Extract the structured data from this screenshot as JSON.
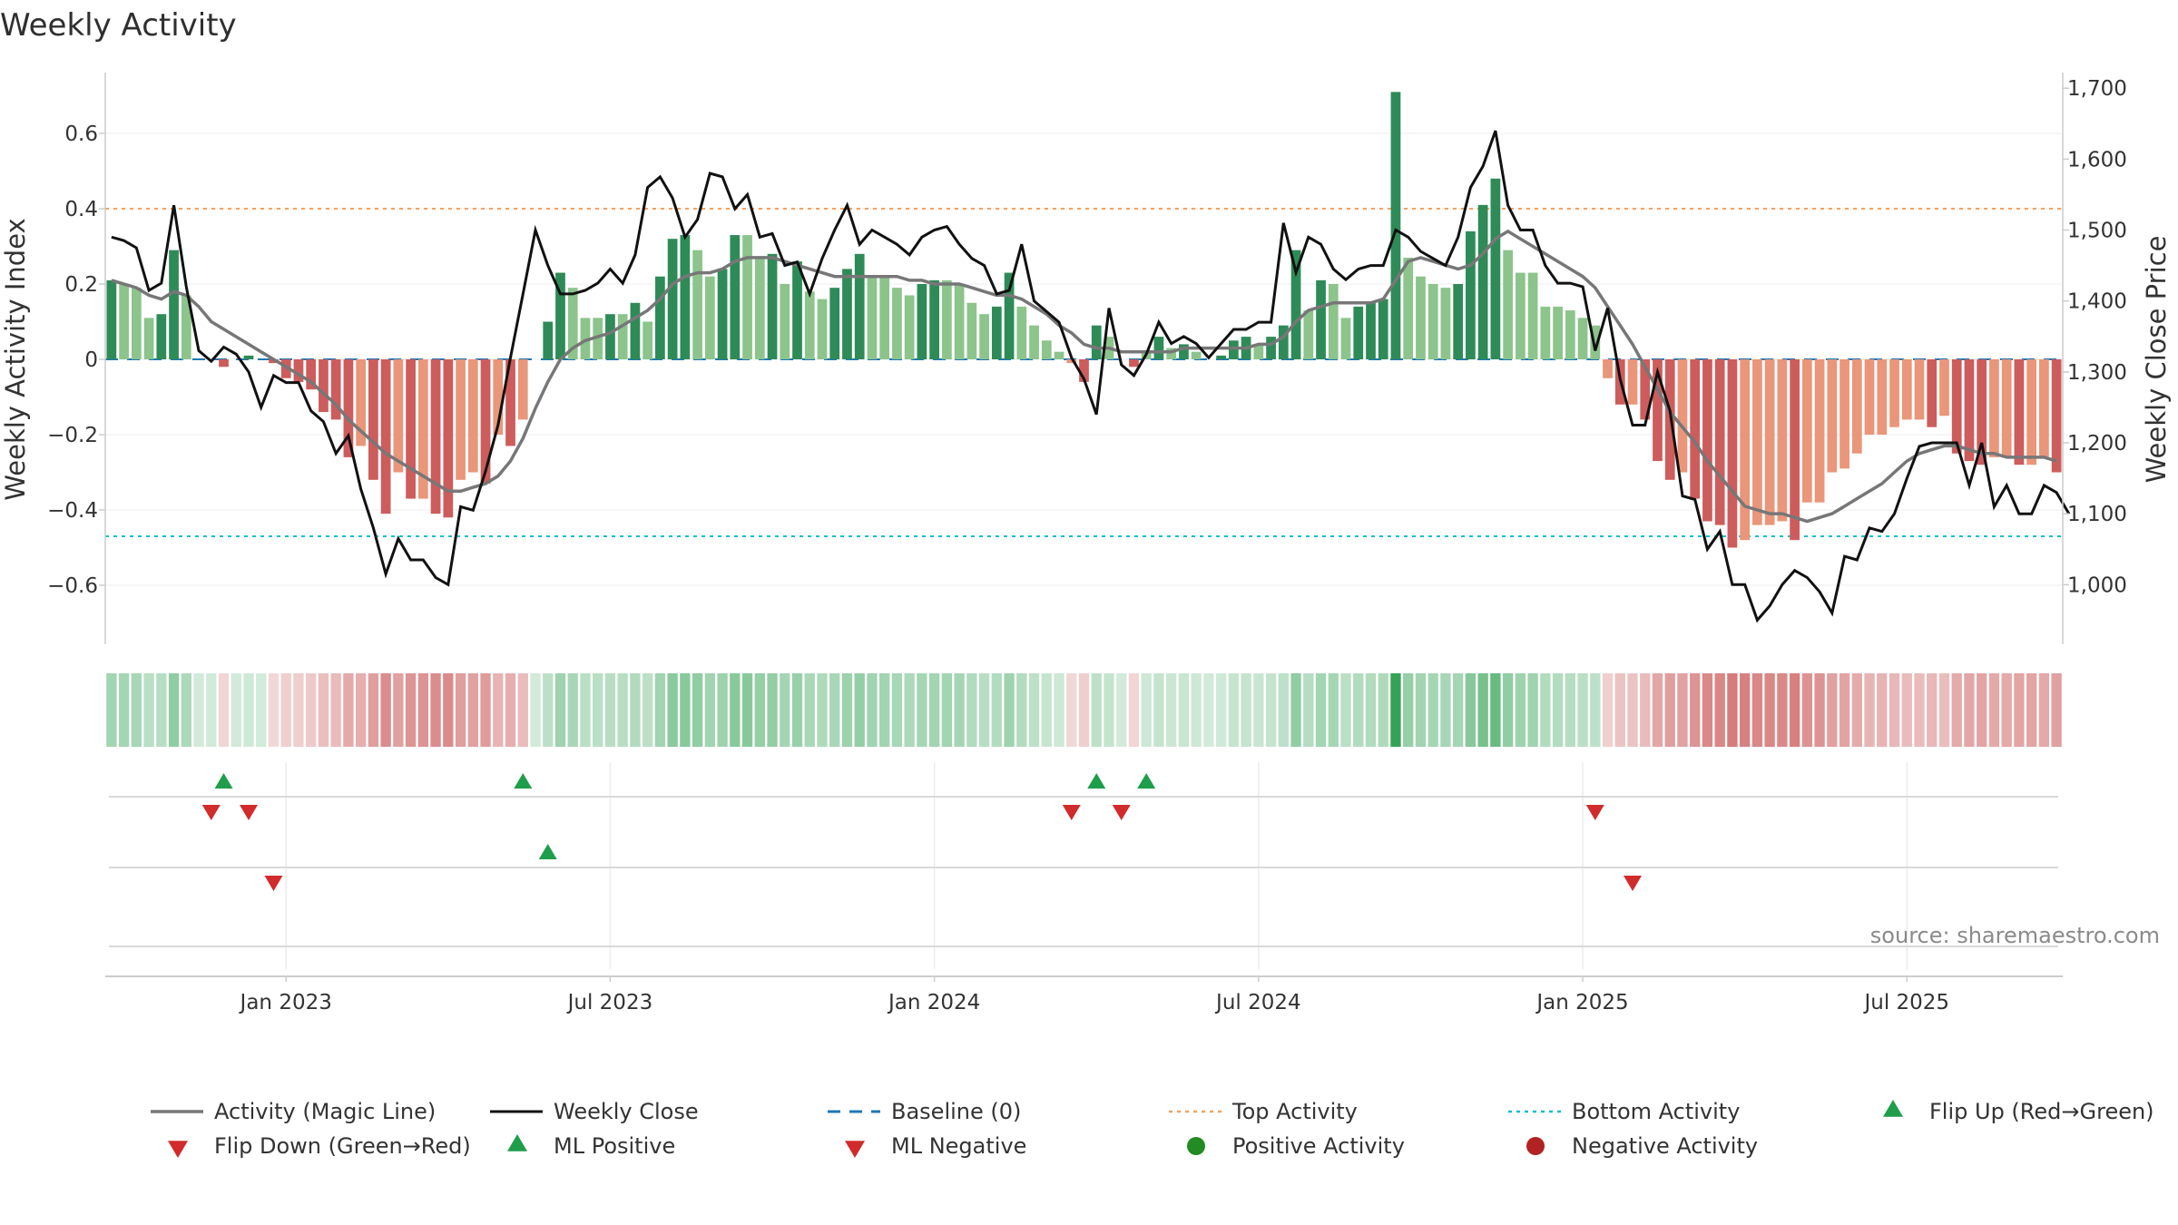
{
  "chart_data": {
    "type": "bar+line",
    "title": "Weekly Activity",
    "ylabel_left": "Weekly Activity Index",
    "ylabel_right": "Weekly Close Price",
    "source": "source: sharemaestro.com",
    "ylim_left": [
      -0.76,
      0.76
    ],
    "ylim_right": [
      916,
      1722
    ],
    "yticks_left": [
      {
        "value": 0.6,
        "label": "0.6"
      },
      {
        "value": 0.4,
        "label": "0.4"
      },
      {
        "value": 0.2,
        "label": "0.2"
      },
      {
        "value": 0,
        "label": "0"
      },
      {
        "value": -0.2,
        "label": "−0.2"
      },
      {
        "value": -0.4,
        "label": "−0.4"
      },
      {
        "value": -0.6,
        "label": "−0.6"
      }
    ],
    "yticks_right": [
      {
        "value": 1700,
        "label": "1,700"
      },
      {
        "value": 1600,
        "label": "1,600"
      },
      {
        "value": 1500,
        "label": "1,500"
      },
      {
        "value": 1400,
        "label": "1,400"
      },
      {
        "value": 1300,
        "label": "1,300"
      },
      {
        "value": 1200,
        "label": "1,200"
      },
      {
        "value": 1100,
        "label": "1,100"
      },
      {
        "value": 1000,
        "label": "1,000"
      }
    ],
    "xticks": [
      {
        "week": 14,
        "label": "Jan 2023"
      },
      {
        "week": 40,
        "label": "Jul 2023"
      },
      {
        "week": 66,
        "label": "Jan 2024"
      },
      {
        "week": 92,
        "label": "Jul 2024"
      },
      {
        "week": 118,
        "label": "Jan 2025"
      },
      {
        "week": 144,
        "label": "Jul 2025"
      }
    ],
    "reference_lines": {
      "top_activity": 0.4,
      "bottom_activity": -0.47,
      "baseline": 0
    },
    "weeks": 157,
    "activity": [
      0.21,
      0.2,
      0.19,
      0.11,
      0.12,
      0.29,
      0.17,
      0.0,
      0.0,
      -0.02,
      0.0,
      0.01,
      0.0,
      -0.01,
      -0.05,
      -0.06,
      -0.08,
      -0.14,
      -0.16,
      -0.26,
      -0.23,
      -0.32,
      -0.41,
      -0.3,
      -0.37,
      -0.37,
      -0.41,
      -0.42,
      -0.32,
      -0.3,
      -0.33,
      -0.2,
      -0.23,
      -0.16,
      0.0,
      0.1,
      0.23,
      0.19,
      0.11,
      0.11,
      0.12,
      0.12,
      0.15,
      0.1,
      0.22,
      0.32,
      0.33,
      0.29,
      0.22,
      0.24,
      0.33,
      0.33,
      0.27,
      0.28,
      0.2,
      0.26,
      0.18,
      0.16,
      0.19,
      0.24,
      0.28,
      0.22,
      0.22,
      0.19,
      0.17,
      0.2,
      0.21,
      0.21,
      0.2,
      0.15,
      0.12,
      0.14,
      0.23,
      0.14,
      0.09,
      0.05,
      0.02,
      -0.01,
      -0.06,
      0.09,
      0.06,
      0.0,
      -0.02,
      0.02,
      0.06,
      0.03,
      0.04,
      0.02,
      0.0,
      0.01,
      0.05,
      0.06,
      0.04,
      0.06,
      0.09,
      0.29,
      0.13,
      0.21,
      0.2,
      0.11,
      0.14,
      0.15,
      0.16,
      0.71,
      0.27,
      0.22,
      0.2,
      0.19,
      0.2,
      0.34,
      0.41,
      0.48,
      0.29,
      0.23,
      0.23,
      0.14,
      0.14,
      0.13,
      0.11,
      0.09,
      -0.05,
      -0.12,
      -0.12,
      -0.16,
      -0.27,
      -0.32,
      -0.3,
      -0.37,
      -0.43,
      -0.44,
      -0.5,
      -0.48,
      -0.44,
      -0.44,
      -0.43,
      -0.48,
      -0.38,
      -0.38,
      -0.3,
      -0.29,
      -0.25,
      -0.2,
      -0.2,
      -0.18,
      -0.16,
      -0.16,
      -0.18,
      -0.15,
      -0.25,
      -0.27,
      -0.28,
      -0.26,
      -0.26,
      -0.28,
      -0.28,
      -0.26,
      -0.3
    ],
    "magic_line": [
      0.21,
      0.2,
      0.19,
      0.17,
      0.16,
      0.18,
      0.17,
      0.14,
      0.1,
      0.08,
      0.06,
      0.04,
      0.02,
      0.0,
      -0.02,
      -0.04,
      -0.06,
      -0.09,
      -0.12,
      -0.16,
      -0.19,
      -0.22,
      -0.25,
      -0.27,
      -0.29,
      -0.31,
      -0.33,
      -0.35,
      -0.35,
      -0.34,
      -0.33,
      -0.31,
      -0.27,
      -0.21,
      -0.13,
      -0.06,
      0.0,
      0.03,
      0.05,
      0.06,
      0.07,
      0.09,
      0.11,
      0.13,
      0.16,
      0.2,
      0.22,
      0.23,
      0.23,
      0.24,
      0.26,
      0.27,
      0.27,
      0.27,
      0.26,
      0.25,
      0.24,
      0.23,
      0.22,
      0.22,
      0.22,
      0.22,
      0.22,
      0.22,
      0.21,
      0.21,
      0.2,
      0.2,
      0.2,
      0.19,
      0.18,
      0.17,
      0.17,
      0.16,
      0.14,
      0.12,
      0.09,
      0.07,
      0.04,
      0.03,
      0.03,
      0.02,
      0.02,
      0.02,
      0.02,
      0.02,
      0.03,
      0.03,
      0.03,
      0.03,
      0.03,
      0.03,
      0.04,
      0.04,
      0.06,
      0.1,
      0.13,
      0.14,
      0.15,
      0.15,
      0.15,
      0.15,
      0.16,
      0.21,
      0.26,
      0.27,
      0.26,
      0.25,
      0.24,
      0.25,
      0.28,
      0.32,
      0.34,
      0.32,
      0.3,
      0.28,
      0.26,
      0.24,
      0.22,
      0.19,
      0.14,
      0.09,
      0.04,
      -0.02,
      -0.08,
      -0.14,
      -0.18,
      -0.22,
      -0.27,
      -0.31,
      -0.35,
      -0.39,
      -0.4,
      -0.41,
      -0.41,
      -0.42,
      -0.43,
      -0.42,
      -0.41,
      -0.39,
      -0.37,
      -0.35,
      -0.33,
      -0.3,
      -0.27,
      -0.25,
      -0.24,
      -0.23,
      -0.23,
      -0.24,
      -0.25,
      -0.25,
      -0.26,
      -0.26,
      -0.26,
      -0.26,
      -0.27
    ],
    "weekly_close": [
      1490,
      1485,
      1475,
      1415,
      1425,
      1535,
      1420,
      1330,
      1315,
      1335,
      1325,
      1300,
      1250,
      1295,
      1285,
      1285,
      1245,
      1230,
      1185,
      1210,
      1135,
      1080,
      1015,
      1065,
      1035,
      1035,
      1010,
      1000,
      1110,
      1105,
      1160,
      1225,
      1320,
      1410,
      1500,
      1450,
      1410,
      1410,
      1415,
      1425,
      1445,
      1425,
      1465,
      1560,
      1575,
      1545,
      1490,
      1515,
      1580,
      1575,
      1530,
      1550,
      1490,
      1495,
      1450,
      1455,
      1410,
      1460,
      1500,
      1535,
      1480,
      1500,
      1490,
      1480,
      1465,
      1490,
      1500,
      1505,
      1480,
      1460,
      1450,
      1410,
      1415,
      1480,
      1400,
      1385,
      1370,
      1320,
      1290,
      1240,
      1390,
      1310,
      1295,
      1325,
      1370,
      1340,
      1350,
      1340,
      1320,
      1340,
      1360,
      1360,
      1370,
      1370,
      1510,
      1440,
      1490,
      1480,
      1445,
      1430,
      1445,
      1450,
      1450,
      1500,
      1490,
      1470,
      1460,
      1450,
      1490,
      1560,
      1590,
      1640,
      1535,
      1500,
      1500,
      1450,
      1425,
      1425,
      1420,
      1330,
      1390,
      1290,
      1225,
      1225,
      1300,
      1245,
      1125,
      1120,
      1050,
      1075,
      1000,
      1000,
      950,
      970,
      1000,
      1020,
      1010,
      990,
      960,
      1040,
      1035,
      1080,
      1075,
      1100,
      1150,
      1195,
      1200,
      1200,
      1200,
      1140,
      1200,
      1110,
      1140,
      1100,
      1100,
      1140,
      1130,
      1100
    ],
    "flip_up_weeks": [
      9,
      33,
      79,
      83
    ],
    "flip_down_weeks": [
      8,
      11,
      77,
      81,
      119
    ],
    "ml_positive_weeks": [
      35
    ],
    "ml_negative_weeks": [
      13,
      122
    ],
    "colors": {
      "pos_strong": "#2e8b57",
      "pos_light": "#8cc48c",
      "neg_strong": "#cd5c5c",
      "neg_light": "#e9967a",
      "magic_line": "#777777",
      "weekly_close": "#111111",
      "baseline": "#1f77b4",
      "top_activity": "#f4a261",
      "bottom_activity": "#17becf",
      "marker_green": "#1e9e4a",
      "marker_red": "#d12b2b",
      "positive_dot": "#228b22",
      "negative_dot": "#b22222"
    },
    "legend": [
      {
        "label": "Activity (Magic Line)",
        "kind": "line-gray"
      },
      {
        "label": "Weekly Close",
        "kind": "line-black"
      },
      {
        "label": "Baseline (0)",
        "kind": "dash-blue"
      },
      {
        "label": "Top Activity",
        "kind": "dot-orange"
      },
      {
        "label": "Bottom Activity",
        "kind": "dot-cyan"
      },
      {
        "label": "Flip Up (Red→Green)",
        "kind": "tri-up"
      },
      {
        "label": "Flip Down (Green→Red)",
        "kind": "tri-down"
      },
      {
        "label": "ML Positive",
        "kind": "tri-up"
      },
      {
        "label": "ML Negative",
        "kind": "tri-down"
      },
      {
        "label": "Positive Activity",
        "kind": "dot-green"
      },
      {
        "label": "Negative Activity",
        "kind": "dot-red"
      }
    ]
  }
}
